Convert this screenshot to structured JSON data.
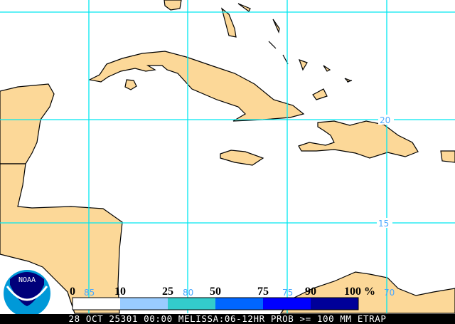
{
  "map": {
    "land_color": "#fcd898",
    "grid_color": "#00e8f0",
    "grid_label_color": "#4aa8ff",
    "lon_labels": [
      "85",
      "80",
      "75",
      "70"
    ],
    "lat_labels": [
      "20",
      "15"
    ]
  },
  "colorbar": {
    "labels": [
      "0",
      "10",
      "25",
      "50",
      "75",
      "90",
      "100"
    ],
    "unit": "%",
    "colors": [
      "#ffffff",
      "#99ccff",
      "#33cccc",
      "#0066ff",
      "#0000ff",
      "#000099"
    ]
  },
  "logo": {
    "text": "NOAA"
  },
  "footer": {
    "caption": "28 OCT 25301 00:00 MELISSA:06-12HR PROB >= 100 MM ETRAP"
  }
}
